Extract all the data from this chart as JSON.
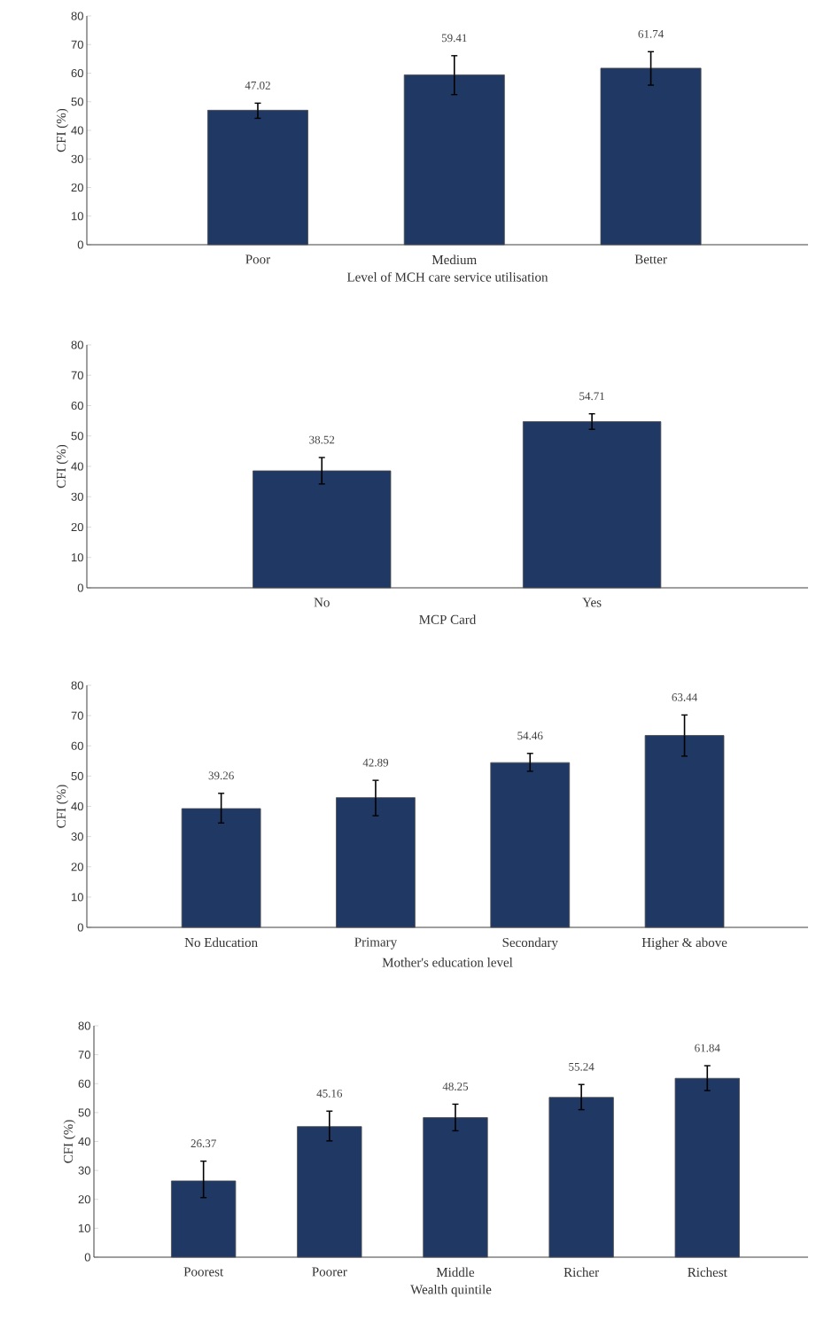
{
  "chart_data": [
    {
      "type": "bar",
      "xlabel": "Level of MCH care service utilisation",
      "ylabel": "CFI (%)",
      "categories": [
        "Poor",
        "Medium",
        "Better"
      ],
      "values": [
        47.02,
        59.41,
        61.74
      ],
      "errors": [
        [
          44.2,
          49.5
        ],
        [
          52.5,
          66.1
        ],
        [
          55.8,
          67.5
        ]
      ],
      "color": "#203864",
      "data_labels": true,
      "ylim": [
        0,
        80
      ],
      "yticks": [
        0,
        10,
        20,
        30,
        40,
        50,
        60,
        70,
        80
      ],
      "grid": false
    },
    {
      "type": "bar",
      "xlabel": "MCP Card",
      "ylabel": "CFI (%)",
      "categories": [
        "No",
        "Yes"
      ],
      "values": [
        38.52,
        54.71
      ],
      "errors": [
        [
          34.2,
          42.9
        ],
        [
          52.2,
          57.3
        ]
      ],
      "color": "#203864",
      "data_labels": true,
      "ylim": [
        0,
        80
      ],
      "yticks": [
        0,
        10,
        20,
        30,
        40,
        50,
        60,
        70,
        80
      ],
      "grid": false
    },
    {
      "type": "bar",
      "xlabel": "Mother's education level",
      "ylabel": "CFI (%)",
      "categories": [
        "No Education",
        "Primary",
        "Secondary",
        "Higher & above"
      ],
      "values": [
        39.26,
        42.89,
        54.46,
        63.44
      ],
      "errors": [
        [
          34.5,
          44.3
        ],
        [
          36.9,
          48.6
        ],
        [
          51.6,
          57.5
        ],
        [
          56.6,
          70.2
        ]
      ],
      "color": "#203864",
      "data_labels": true,
      "ylim": [
        0,
        80
      ],
      "yticks": [
        0,
        10,
        20,
        30,
        40,
        50,
        60,
        70,
        80
      ],
      "grid": false
    },
    {
      "type": "bar",
      "xlabel": "Wealth quintile",
      "ylabel": "CFI (%)",
      "categories": [
        "Poorest",
        "Poorer",
        "Middle",
        "Richer",
        "Richest"
      ],
      "values": [
        26.37,
        45.16,
        48.25,
        55.24,
        61.84
      ],
      "errors": [
        [
          20.6,
          33.2
        ],
        [
          40.2,
          50.5
        ],
        [
          43.7,
          52.9
        ],
        [
          51.0,
          59.7
        ],
        [
          57.6,
          66.2
        ]
      ],
      "color": "#203864",
      "data_labels": true,
      "ylim": [
        0,
        80
      ],
      "yticks": [
        0,
        10,
        20,
        30,
        40,
        50,
        60,
        70,
        80
      ],
      "grid": false
    }
  ]
}
